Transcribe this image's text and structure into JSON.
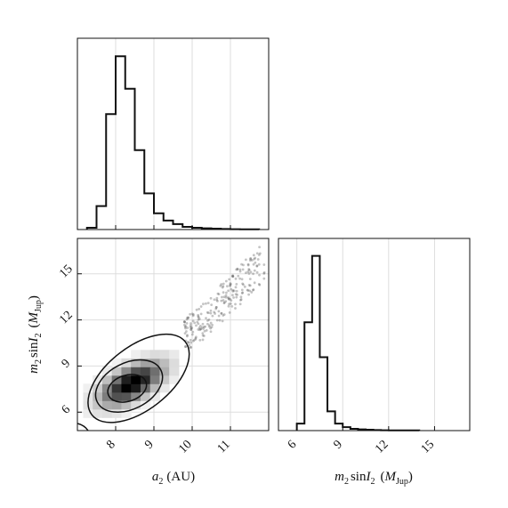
{
  "chart_data": [
    {
      "panel": "top-left",
      "type": "histogram",
      "x_label": "",
      "xlim": [
        7.0,
        12.0
      ],
      "xticks": [
        8,
        9,
        10,
        11
      ],
      "show_tick_labels": false,
      "grid": true,
      "bin_edges": [
        7.25,
        7.5,
        7.75,
        8.0,
        8.25,
        8.5,
        8.75,
        9.0,
        9.25,
        9.5,
        9.75,
        10.0,
        10.25,
        10.5,
        10.75,
        11.0,
        11.25,
        11.5,
        11.75
      ],
      "counts": [
        0.01,
        0.13,
        0.64,
        0.96,
        0.78,
        0.44,
        0.2,
        0.09,
        0.05,
        0.03,
        0.015,
        0.01,
        0.007,
        0.005,
        0.003,
        0.002,
        0.001,
        0.001
      ],
      "ylim": [
        0,
        1.06
      ]
    },
    {
      "panel": "bottom-left",
      "type": "2d-histogram-contour",
      "xlabel_base": "a",
      "xlabel_sub": "2",
      "xlabel_unit": "(AU)",
      "ylabel_base": "m",
      "ylabel_sub": "2",
      "ylabel_mid": "sin",
      "ylabel_I": "I",
      "ylabel_I_sub": "2",
      "ylabel_unit_base": "M",
      "ylabel_unit_sub": "Jup",
      "xlim": [
        7.0,
        12.0
      ],
      "ylim": [
        4.8,
        17.3
      ],
      "xticks": [
        8,
        9,
        10,
        11
      ],
      "yticks": [
        6,
        9,
        12,
        15
      ],
      "grid": true,
      "density_center": [
        8.3,
        7.6
      ],
      "contour_levels": [
        {
          "level": 1,
          "center": [
            8.3,
            7.55
          ],
          "semi_axes": [
            0.52,
            0.85
          ],
          "rotation_deg": 18
        },
        {
          "level": 2,
          "center": [
            8.35,
            7.7
          ],
          "semi_axes": [
            0.93,
            1.5
          ],
          "rotation_deg": 27
        },
        {
          "level": 3,
          "center": [
            8.6,
            8.2
          ],
          "semi_axes": [
            1.55,
            2.05
          ],
          "rotation_deg": 38
        }
      ],
      "scatter_region": {
        "x_range": [
          9.8,
          11.9
        ],
        "y_range": [
          10.2,
          16.8
        ]
      }
    },
    {
      "panel": "bottom-right",
      "type": "histogram",
      "xlabel_base": "m",
      "xlabel_sub": "2",
      "xlabel_mid": "sin",
      "xlabel_I": "I",
      "xlabel_I_sub": "2",
      "xlabel_unit_base": "M",
      "xlabel_unit_sub": "Jup",
      "xlim": [
        4.8,
        17.3
      ],
      "xticks": [
        6,
        9,
        12,
        15
      ],
      "grid": true,
      "bin_edges": [
        6.0,
        6.5,
        7.0,
        7.5,
        8.0,
        8.5,
        9.0,
        9.5,
        10.0,
        10.5,
        11.0,
        11.5,
        12.0,
        12.5,
        13.0,
        13.5,
        14.0
      ],
      "counts": [
        0.04,
        0.62,
        1.0,
        0.42,
        0.11,
        0.04,
        0.02,
        0.01,
        0.007,
        0.005,
        0.003,
        0.002,
        0.001,
        0.001,
        0.001,
        0.001
      ],
      "ylim": [
        0,
        1.1
      ]
    }
  ]
}
